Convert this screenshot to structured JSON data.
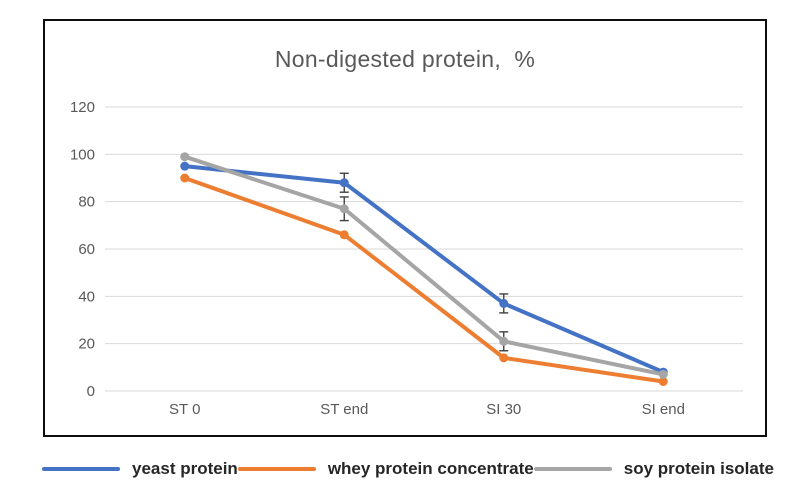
{
  "chart_data": {
    "type": "line",
    "title": "Non-digested protein,  %",
    "categories": [
      "ST 0",
      "ST end",
      "SI 30",
      "SI end"
    ],
    "series": [
      {
        "name": "yeast protein",
        "color": "#4472C4",
        "values": [
          95,
          88,
          37,
          8
        ],
        "error_bars": [
          0,
          4,
          4,
          0
        ]
      },
      {
        "name": "whey protein concentrate",
        "color": "#ED7D31",
        "values": [
          90,
          66,
          14,
          4
        ],
        "error_bars": [
          0,
          0,
          0,
          0
        ]
      },
      {
        "name": "soy protein isolate",
        "color": "#A5A5A5",
        "values": [
          99,
          77,
          21,
          7
        ],
        "error_bars": [
          0,
          5,
          4,
          0
        ]
      }
    ],
    "y_ticks": [
      0,
      20,
      40,
      60,
      80,
      100,
      120
    ],
    "ylim": [
      0,
      120
    ],
    "grid": true,
    "legend_position": "bottom",
    "colors": {
      "gridline": "#D9D9D9",
      "axis_text": "#595959",
      "title_text": "#595959",
      "legend_text": "#262626",
      "error_bar": "#404040",
      "frame_border": "#0d0d0d"
    }
  }
}
